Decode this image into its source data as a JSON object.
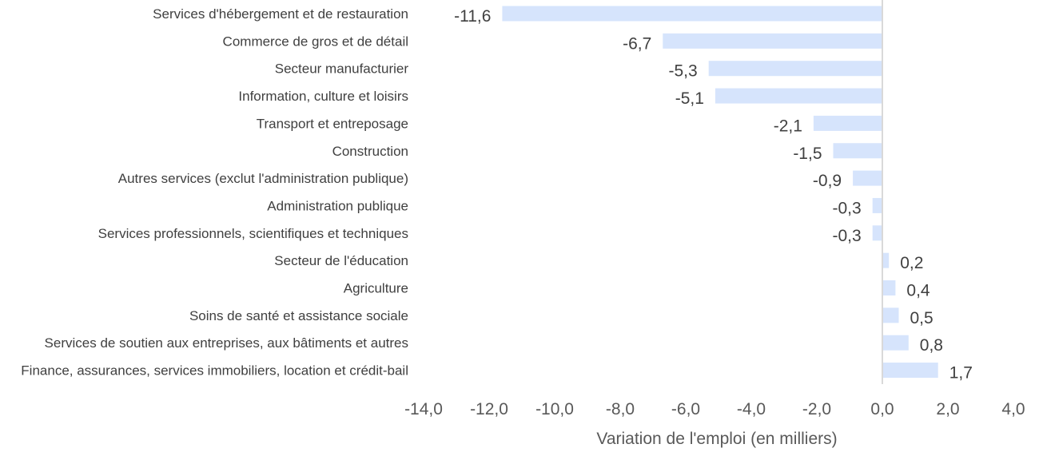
{
  "chart_data": {
    "type": "bar",
    "orientation": "horizontal",
    "categories": [
      "Services d'hébergement et de restauration",
      "Commerce de gros et de détail",
      "Secteur manufacturier",
      "Information, culture et loisirs",
      "Transport et entreposage",
      "Construction",
      "Autres services (exclut l'administration publique)",
      "Administration publique",
      "Services professionnels, scientifiques et techniques",
      "Secteur de l'éducation",
      "Agriculture",
      "Soins de santé et assistance sociale",
      "Services de soutien aux entreprises, aux bâtiments et autres",
      "Finance, assurances, services immobiliers, location et crédit-bail"
    ],
    "values": [
      -11.6,
      -6.7,
      -5.3,
      -5.1,
      -2.1,
      -1.5,
      -0.9,
      -0.3,
      -0.3,
      0.2,
      0.4,
      0.5,
      0.8,
      1.7
    ],
    "value_labels": [
      "-11,6",
      "-6,7",
      "-5,3",
      "-5,1",
      "-2,1",
      "-1,5",
      "-0,9",
      "-0,3",
      "-0,3",
      "0,2",
      "0,4",
      "0,5",
      "0,8",
      "1,7"
    ],
    "xlabel": "Variation de l'emploi (en milliers)",
    "ylabel": "",
    "xlim": [
      -14,
      4
    ],
    "xticks": [
      -14,
      -12,
      -10,
      -8,
      -6,
      -4,
      -2,
      0,
      2,
      4
    ],
    "xtick_labels": [
      "-14,0",
      "-12,0",
      "-10,0",
      "-8,0",
      "-6,0",
      "-4,0",
      "-2,0",
      "0,0",
      "2,0",
      "4,0"
    ],
    "grid": false,
    "legend": "none",
    "bar_color": "#d6e4fc",
    "zero_line_color": "#d9d9d9"
  }
}
